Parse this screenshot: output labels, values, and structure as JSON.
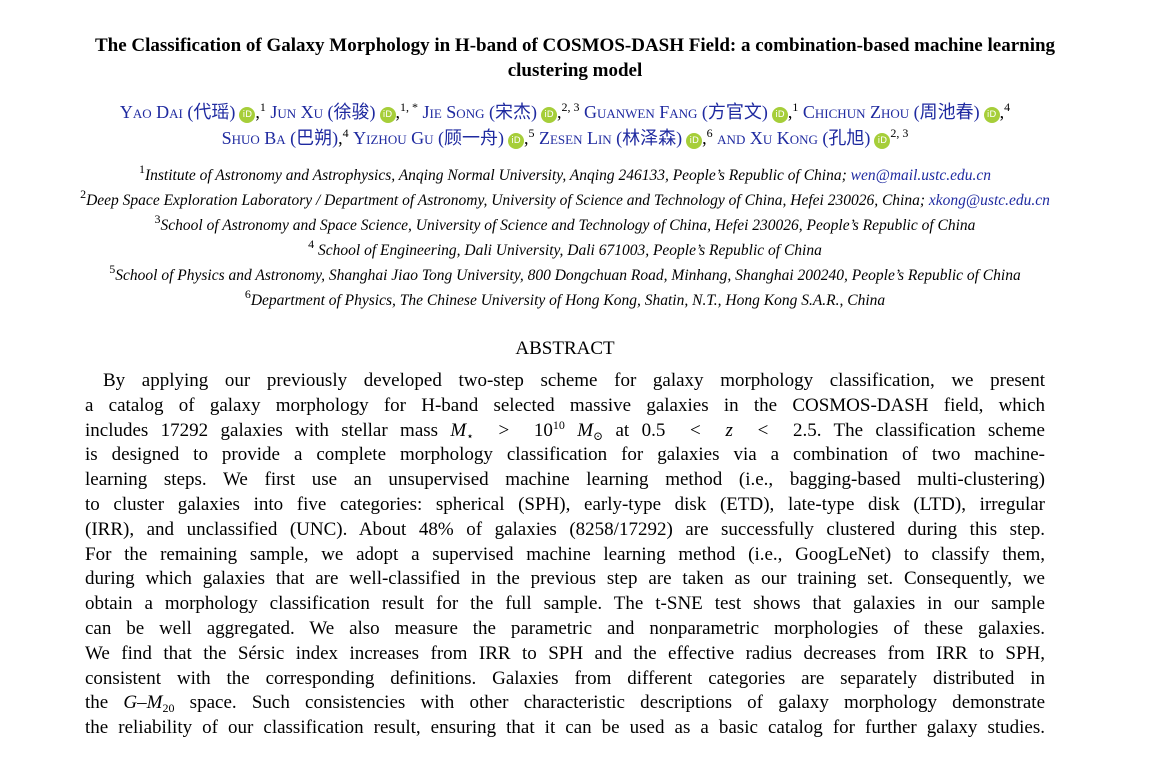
{
  "title": [
    "The Classification of Galaxy Morphology in H-band of COSMOS-DASH Field: a combination-based machine learning",
    "clustering model"
  ],
  "authors": [
    {
      "name": "Yao Dai",
      "cn": "(代瑶)",
      "orcid": true,
      "aff": "1"
    },
    {
      "name": "Jun Xu",
      "cn": "(徐骏)",
      "orcid": true,
      "aff": "1, *"
    },
    {
      "name": "Jie Song",
      "cn": "(宋杰)",
      "orcid": true,
      "aff": "2, 3"
    },
    {
      "name": "Guanwen Fang",
      "cn": "(方官文)",
      "orcid": true,
      "aff": "1"
    },
    {
      "name": "Chichun Zhou",
      "cn": "(周池春)",
      "orcid": true,
      "aff": "4"
    },
    {
      "name": "Shuo Ba",
      "cn": "(巴朔)",
      "orcid": false,
      "aff": "4"
    },
    {
      "name": "Yizhou Gu",
      "cn": "(顾一舟)",
      "orcid": true,
      "aff": "5"
    },
    {
      "name": "Zesen Lin",
      "cn": "(林泽森)",
      "orcid": true,
      "aff": "6"
    },
    {
      "name": "Xu Kong",
      "cn": "(孔旭)",
      "orcid": true,
      "aff": "2, 3"
    }
  ],
  "and_word": "and",
  "orcid_label": "iD",
  "affiliations": [
    {
      "num": "1",
      "text": "Institute of Astronomy and Astrophysics, Anqing Normal University, Anqing 246133, People’s Republic of China; ",
      "email": "wen@mail.ustc.edu.cn"
    },
    {
      "num": "2",
      "text": "Deep Space Exploration Laboratory / Department of Astronomy, University of Science and Technology of China, Hefei 230026, China; ",
      "email": "xkong@ustc.edu.cn"
    },
    {
      "num": "3",
      "text": "School of Astronomy and Space Science, University of Science and Technology of China, Hefei 230026, People’s Republic of China",
      "email": ""
    },
    {
      "num": "4",
      "text": " School of Engineering, Dali University, Dali 671003, People’s Republic of China",
      "email": ""
    },
    {
      "num": "5",
      "text": "School of Physics and Astronomy, Shanghai Jiao Tong University, 800 Dongchuan Road, Minhang, Shanghai 200240, People’s Republic of China",
      "email": ""
    },
    {
      "num": "6",
      "text": "Department of Physics, The Chinese University of Hong Kong, Shatin, N.T., Hong Kong S.A.R., China",
      "email": ""
    }
  ],
  "abstract_heading": "ABSTRACT",
  "abstract": {
    "l1": "By applying our previously developed two-step scheme for galaxy morphology classification, we present",
    "l2": "a catalog of galaxy morphology for H-band selected massive galaxies in the COSMOS-DASH field, which",
    "l3a": "includes 17292 galaxies with stellar mass ",
    "l3_math1": "M⋆ > 10^10 M⊙",
    "l3b": " at ",
    "l3_math2": "0.5 < z < 2.5",
    "l3c": ".  The classification scheme",
    "l4": "is designed to provide a complete morphology classification for galaxies via a combination of two machine-",
    "l5": "learning steps.  We first use an unsupervised machine learning method (i.e., bagging-based multi-clustering)",
    "l6": "to cluster galaxies into five categories: spherical (SPH), early-type disk (ETD), late-type disk (LTD), irregular",
    "l7": "(IRR), and unclassified (UNC). About 48% of galaxies (8258/17292) are successfully clustered during this step.",
    "l8": "For the remaining sample, we adopt a supervised machine learning method (i.e., GoogLeNet) to classify them,",
    "l9": "during which galaxies that are well-classified in the previous step are taken as our training set. Consequently, we",
    "l10": "obtain a morphology classification result for the full sample.  The t-SNE test shows that galaxies in our sample",
    "l11": "can be well aggregated.  We also measure the parametric and nonparametric morphologies of these galaxies.",
    "l12": "We find that the Sérsic index increases from IRR to SPH and the effective radius decreases from IRR to SPH,",
    "l13": "consistent with the corresponding definitions.  Galaxies from different categories are separately distributed in",
    "l14a": "the ",
    "l14_math": "G–M20",
    "l14b": " space. Such consistencies with other characteristic descriptions of galaxy morphology demonstrate",
    "l15": "the reliability of our classification result, ensuring that it can be used as a basic catalog for further galaxy studies."
  },
  "colors": {
    "link": "#1f2aa0",
    "orcid": "#a6ce39"
  }
}
